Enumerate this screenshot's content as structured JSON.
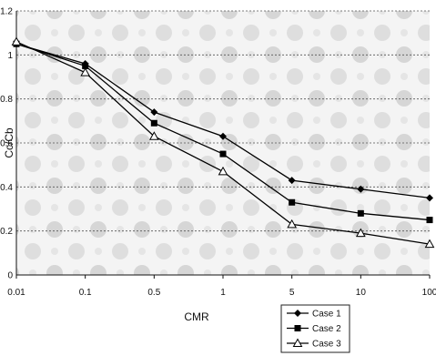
{
  "chart_data": {
    "type": "line",
    "title": "",
    "xlabel": "CMR",
    "ylabel": "Cc/Cb",
    "x": [
      "0.01",
      "0.1",
      "0.5",
      "1",
      "5",
      "10",
      "100"
    ],
    "ylim": [
      0,
      1.2
    ],
    "yticks": [
      "0",
      "0.2",
      "0.4",
      "0.6",
      "0.8",
      "1",
      "1.2"
    ],
    "grid": "horizontal-dashed",
    "legend_position": "bottom-right",
    "series": [
      {
        "name": "Case 1",
        "marker": "diamond",
        "values": [
          1.05,
          0.96,
          0.74,
          0.63,
          0.43,
          0.39,
          0.35
        ]
      },
      {
        "name": "Case 2",
        "marker": "square",
        "values": [
          1.05,
          0.95,
          0.69,
          0.55,
          0.33,
          0.28,
          0.25
        ]
      },
      {
        "name": "Case 3",
        "marker": "triangle",
        "values": [
          1.06,
          0.92,
          0.63,
          0.47,
          0.23,
          0.19,
          0.14
        ]
      }
    ]
  }
}
